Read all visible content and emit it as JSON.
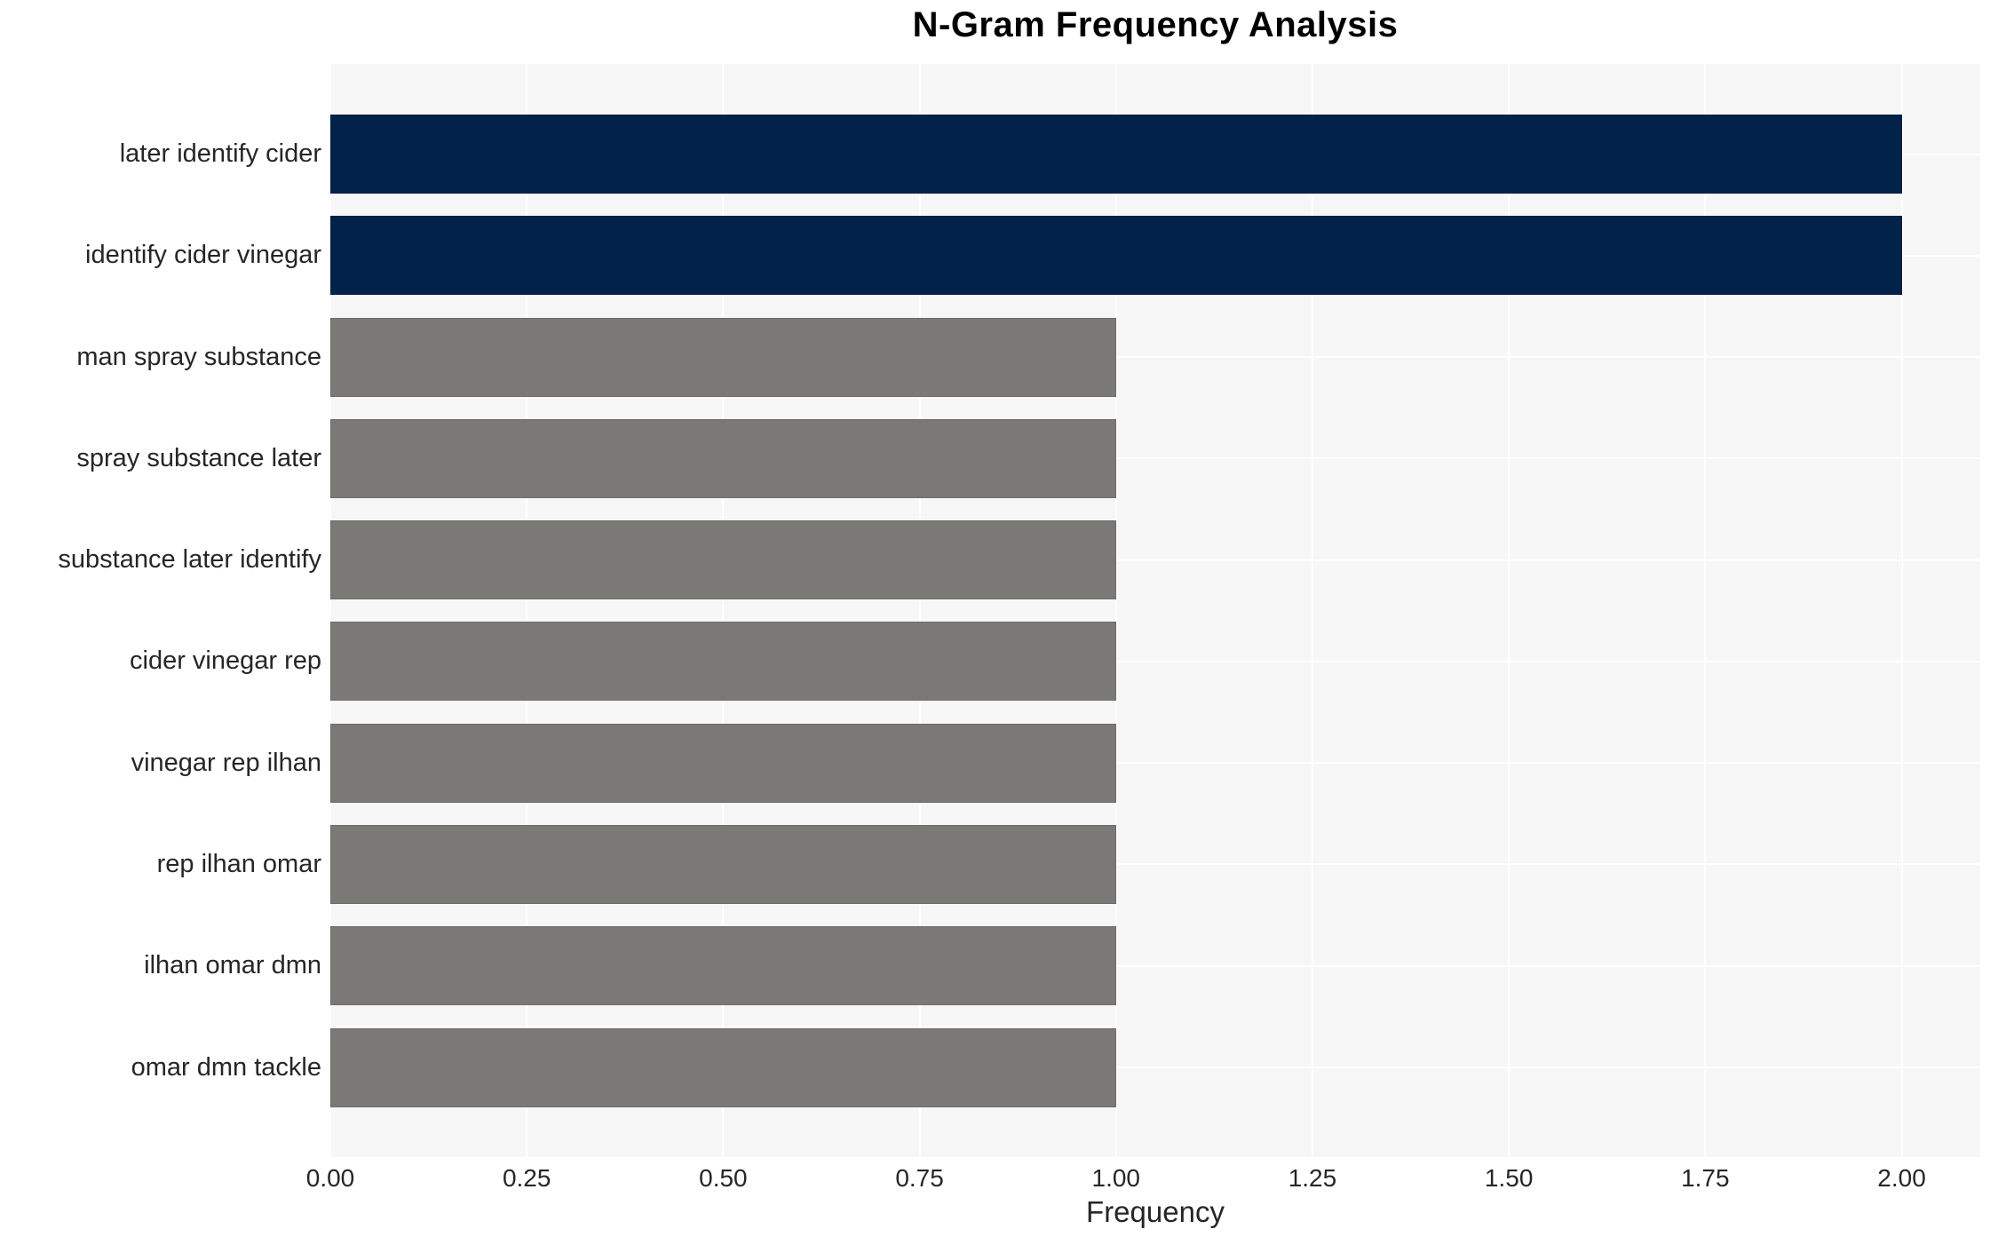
{
  "title": "N-Gram Frequency Analysis",
  "chart_data": {
    "type": "bar",
    "orientation": "horizontal",
    "title": "N-Gram Frequency Analysis",
    "categories": [
      "later identify cider",
      "identify cider vinegar",
      "man spray substance",
      "spray substance later",
      "substance later identify",
      "cider vinegar rep",
      "vinegar rep ilhan",
      "rep ilhan omar",
      "ilhan omar dmn",
      "omar dmn tackle"
    ],
    "values": [
      2,
      2,
      1,
      1,
      1,
      1,
      1,
      1,
      1,
      1
    ],
    "xlabel": "Frequency",
    "ylabel": "",
    "xlim": [
      0,
      2.1
    ],
    "xticks": [
      0,
      0.25,
      0.5,
      0.75,
      1,
      1.25,
      1.5,
      1.75,
      2
    ],
    "xtick_labels": [
      "0.00",
      "0.25",
      "0.50",
      "0.75",
      "1.00",
      "1.25",
      "1.50",
      "1.75",
      "2.00"
    ],
    "grid": true,
    "legend": false,
    "bar_colors": [
      "#03224a",
      "#03224a",
      "#7b7975",
      "#7b7975",
      "#7b7975",
      "#7b7975",
      "#7b7975",
      "#7b7975",
      "#7b7975",
      "#7b7975"
    ],
    "colors": {
      "highlight": "#03224a",
      "default": "#7b7975",
      "plot_background": "#f7f7f7",
      "gridline": "#ffffff",
      "text": "#262626",
      "title": "#000000"
    }
  }
}
